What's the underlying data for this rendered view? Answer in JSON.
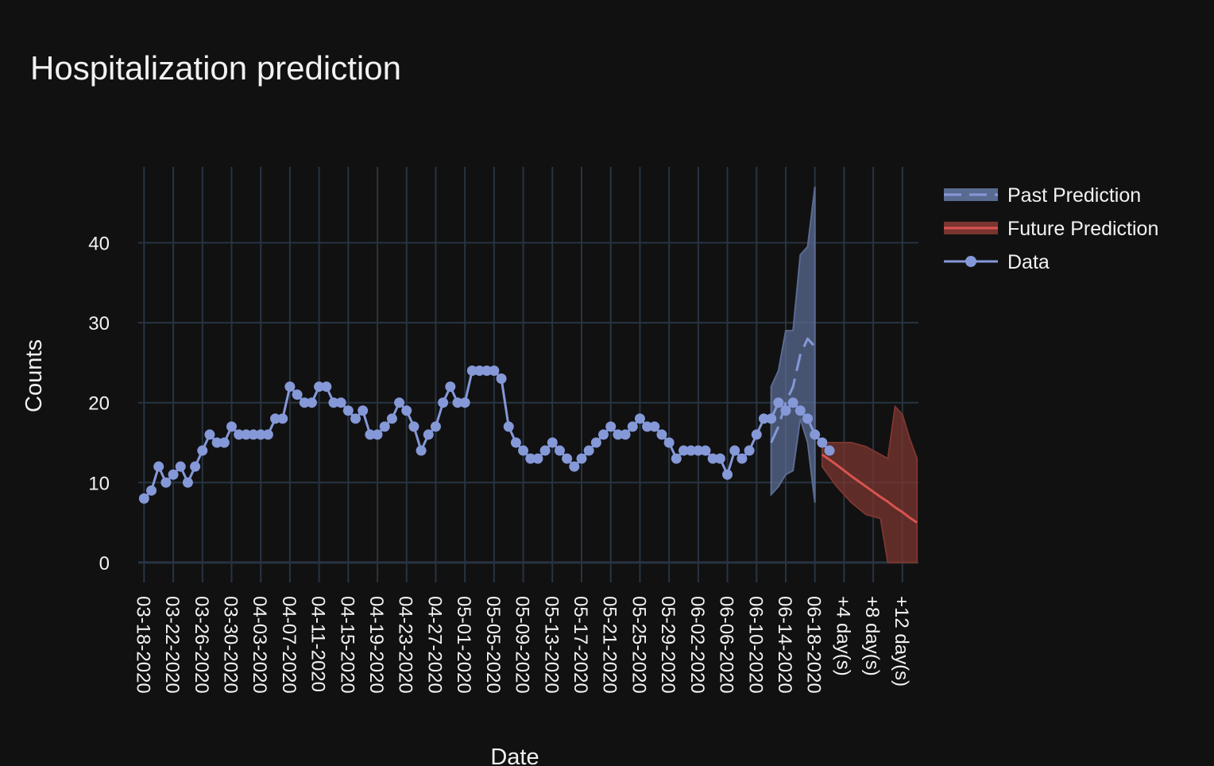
{
  "chart_data": {
    "type": "line",
    "title": "Hospitalization prediction",
    "xlabel": "Date",
    "ylabel": "Counts",
    "ylim": [
      -2.5,
      49.5
    ],
    "yticks": [
      0,
      10,
      20,
      30,
      40
    ],
    "xticks": [
      {
        "day": 0,
        "label": "03-18-2020"
      },
      {
        "day": 4,
        "label": "03-22-2020"
      },
      {
        "day": 8,
        "label": "03-26-2020"
      },
      {
        "day": 12,
        "label": "03-30-2020"
      },
      {
        "day": 16,
        "label": "04-03-2020"
      },
      {
        "day": 20,
        "label": "04-07-2020"
      },
      {
        "day": 24,
        "label": "04-11-2020"
      },
      {
        "day": 28,
        "label": "04-15-2020"
      },
      {
        "day": 32,
        "label": "04-19-2020"
      },
      {
        "day": 36,
        "label": "04-23-2020"
      },
      {
        "day": 40,
        "label": "04-27-2020"
      },
      {
        "day": 44,
        "label": "05-01-2020"
      },
      {
        "day": 48,
        "label": "05-05-2020"
      },
      {
        "day": 52,
        "label": "05-09-2020"
      },
      {
        "day": 56,
        "label": "05-13-2020"
      },
      {
        "day": 60,
        "label": "05-17-2020"
      },
      {
        "day": 64,
        "label": "05-21-2020"
      },
      {
        "day": 68,
        "label": "05-25-2020"
      },
      {
        "day": 72,
        "label": "05-29-2020"
      },
      {
        "day": 76,
        "label": "06-02-2020"
      },
      {
        "day": 80,
        "label": "06-06-2020"
      },
      {
        "day": 84,
        "label": "06-10-2020"
      },
      {
        "day": 88,
        "label": "06-14-2020"
      },
      {
        "day": 92,
        "label": "06-18-2020"
      },
      {
        "day": 96,
        "label": "+4 day(s)"
      },
      {
        "day": 100,
        "label": "+8 day(s)"
      },
      {
        "day": 104,
        "label": "+12 day(s)"
      }
    ],
    "x_range_days": [
      -0.8,
      106.2
    ],
    "data_start_day": 0,
    "series": [
      {
        "name": "Past Prediction",
        "color": "#8598d8",
        "band_color": "#5a6b92",
        "x": [
          86,
          87,
          88,
          89,
          90,
          91,
          92
        ],
        "values": [
          15,
          17,
          20,
          22,
          26,
          28,
          27
        ],
        "lower": [
          8.5,
          9.5,
          11,
          11.5,
          18,
          15,
          7.5
        ],
        "upper": [
          22,
          24,
          29,
          29,
          38.5,
          39.5,
          47
        ]
      },
      {
        "name": "Future Prediction",
        "color": "#d9534f",
        "band_color": "#7a3530",
        "x": [
          93,
          95,
          97,
          99,
          101,
          102,
          103,
          104,
          105,
          106
        ],
        "values": [
          13.5,
          12.2,
          10.8,
          9.5,
          8.2,
          7.6,
          6.9,
          6.3,
          5.6,
          5.0
        ],
        "lower": [
          12,
          9.5,
          7.5,
          6,
          5.5,
          0,
          0,
          0,
          0,
          0
        ],
        "upper": [
          15,
          15,
          15,
          14.5,
          13.5,
          13,
          19.5,
          18.5,
          15.5,
          13
        ]
      },
      {
        "name": "Data",
        "color": "#8598d8",
        "values": [
          8,
          9,
          12,
          10,
          11,
          12,
          10,
          12,
          14,
          16,
          15,
          15,
          17,
          16,
          16,
          16,
          16,
          16,
          18,
          18,
          22,
          21,
          20,
          20,
          22,
          22,
          20,
          20,
          19,
          18,
          19,
          16,
          16,
          17,
          18,
          20,
          19,
          17,
          14,
          16,
          17,
          20,
          22,
          20,
          20,
          24,
          24,
          24,
          24,
          23,
          17,
          15,
          14,
          13,
          13,
          14,
          15,
          14,
          13,
          12,
          13,
          14,
          15,
          16,
          17,
          16,
          16,
          17,
          18,
          17,
          17,
          16,
          15,
          13,
          14,
          14,
          14,
          14,
          13,
          13,
          11,
          14,
          13,
          14,
          16,
          18,
          18,
          20,
          19,
          20,
          19,
          18,
          16,
          15,
          14
        ]
      }
    ],
    "legend": [
      "Past Prediction",
      "Future Prediction",
      "Data"
    ],
    "legend_position": "top-right",
    "grid": true
  }
}
